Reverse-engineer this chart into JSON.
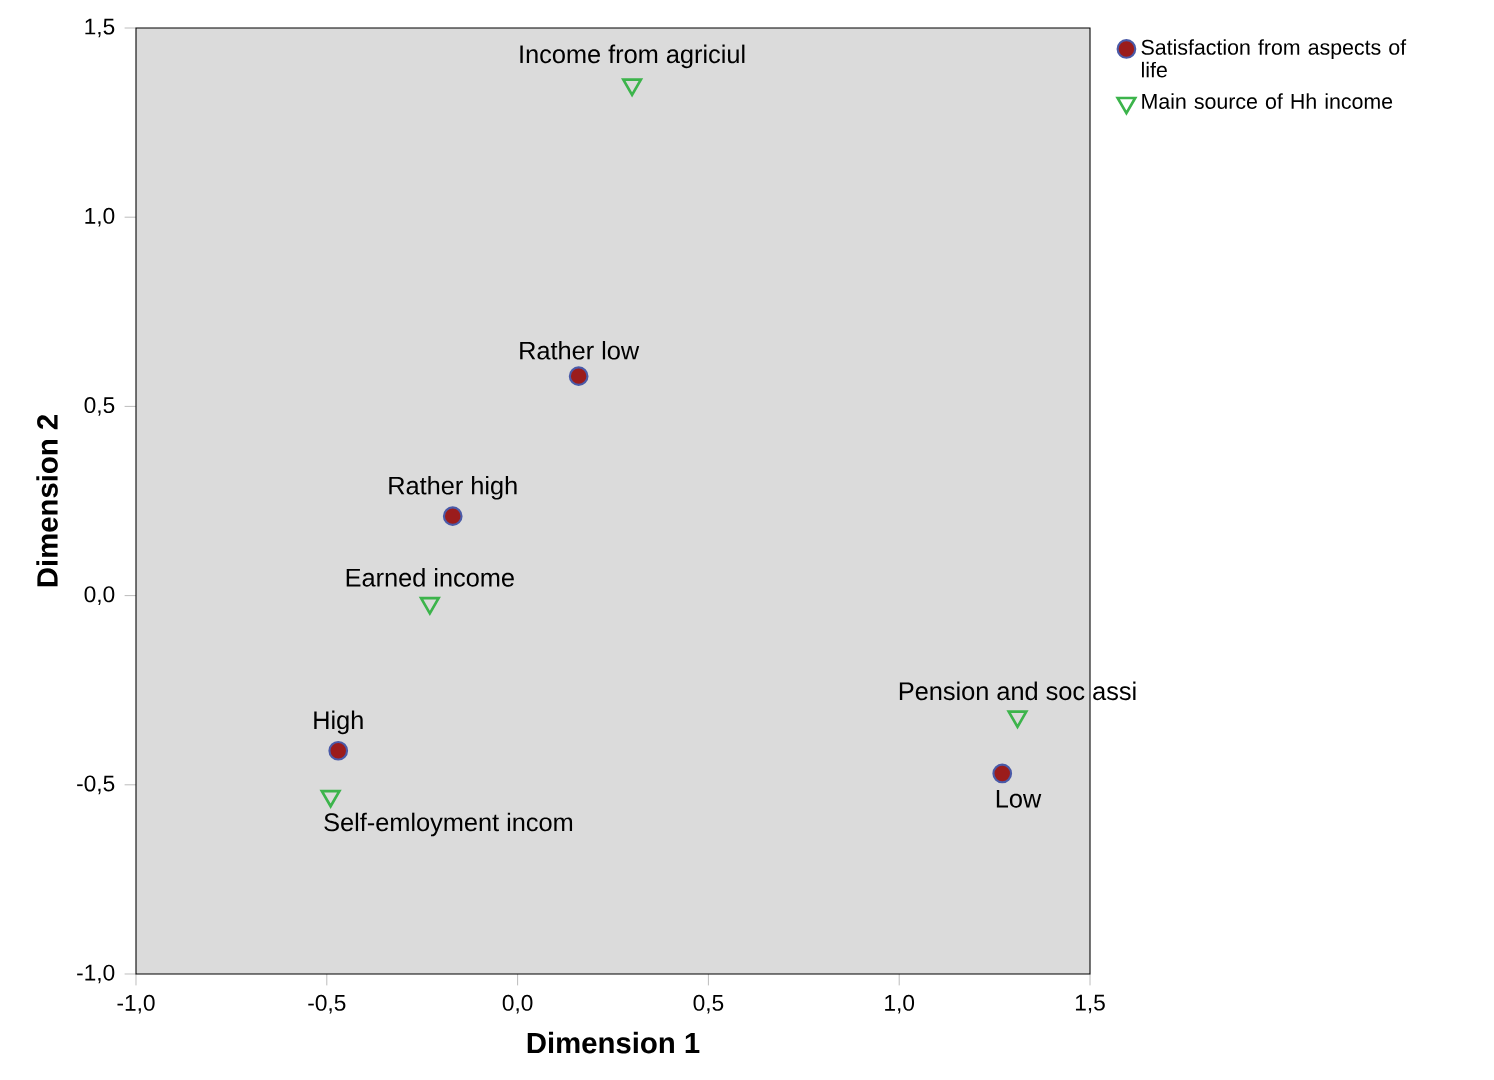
{
  "chart_data": {
    "type": "scatter",
    "xlabel": "Dimension 1",
    "ylabel": "Dimension 2",
    "xlim": [
      -1.0,
      1.5
    ],
    "ylim": [
      -1.0,
      1.5
    ],
    "xticks": [
      {
        "value": -1.0,
        "label": "-1,0"
      },
      {
        "value": -0.5,
        "label": "-0,5"
      },
      {
        "value": 0.0,
        "label": "0,0"
      },
      {
        "value": 0.5,
        "label": "0,5"
      },
      {
        "value": 1.0,
        "label": "1,0"
      },
      {
        "value": 1.5,
        "label": "1,5"
      }
    ],
    "yticks": [
      {
        "value": -1.0,
        "label": "-1,0"
      },
      {
        "value": -0.5,
        "label": "-0,5"
      },
      {
        "value": 0.0,
        "label": "0,0"
      },
      {
        "value": 0.5,
        "label": "0,5"
      },
      {
        "value": 1.0,
        "label": "1,0"
      },
      {
        "value": 1.5,
        "label": "1,5"
      }
    ],
    "legend": "top right",
    "grid": false,
    "series": [
      {
        "name": "Satisfaction from aspects of life",
        "color": "#9b1c1c",
        "marker": "circle",
        "x": [
          0.16,
          -0.17,
          -0.47,
          1.27
        ],
        "values": [
          0.58,
          0.21,
          -0.41,
          -0.47
        ]
      },
      {
        "name": "Main source of Hh income",
        "color": "#3cb44b",
        "marker": "triangle",
        "x": [
          0.3,
          -0.23,
          -0.49,
          1.31
        ],
        "values": [
          1.35,
          -0.02,
          -0.53,
          -0.32
        ]
      }
    ],
    "annotations": [
      {
        "text": "Rather low",
        "x": 0.16,
        "y": 0.58
      },
      {
        "text": "Rather high",
        "x": -0.17,
        "y": 0.21
      },
      {
        "text": "High",
        "x": -0.47,
        "y": -0.41
      },
      {
        "text": "Low",
        "x": 1.27,
        "y": -0.47
      },
      {
        "text": "Income from agriciul",
        "x": 0.3,
        "y": 1.35
      },
      {
        "text": "Earned income",
        "x": -0.23,
        "y": -0.02
      },
      {
        "text": "Self-emloyment incom",
        "x": -0.49,
        "y": -0.53
      },
      {
        "text": "Pension and soc assi",
        "x": 1.31,
        "y": -0.32
      }
    ]
  }
}
